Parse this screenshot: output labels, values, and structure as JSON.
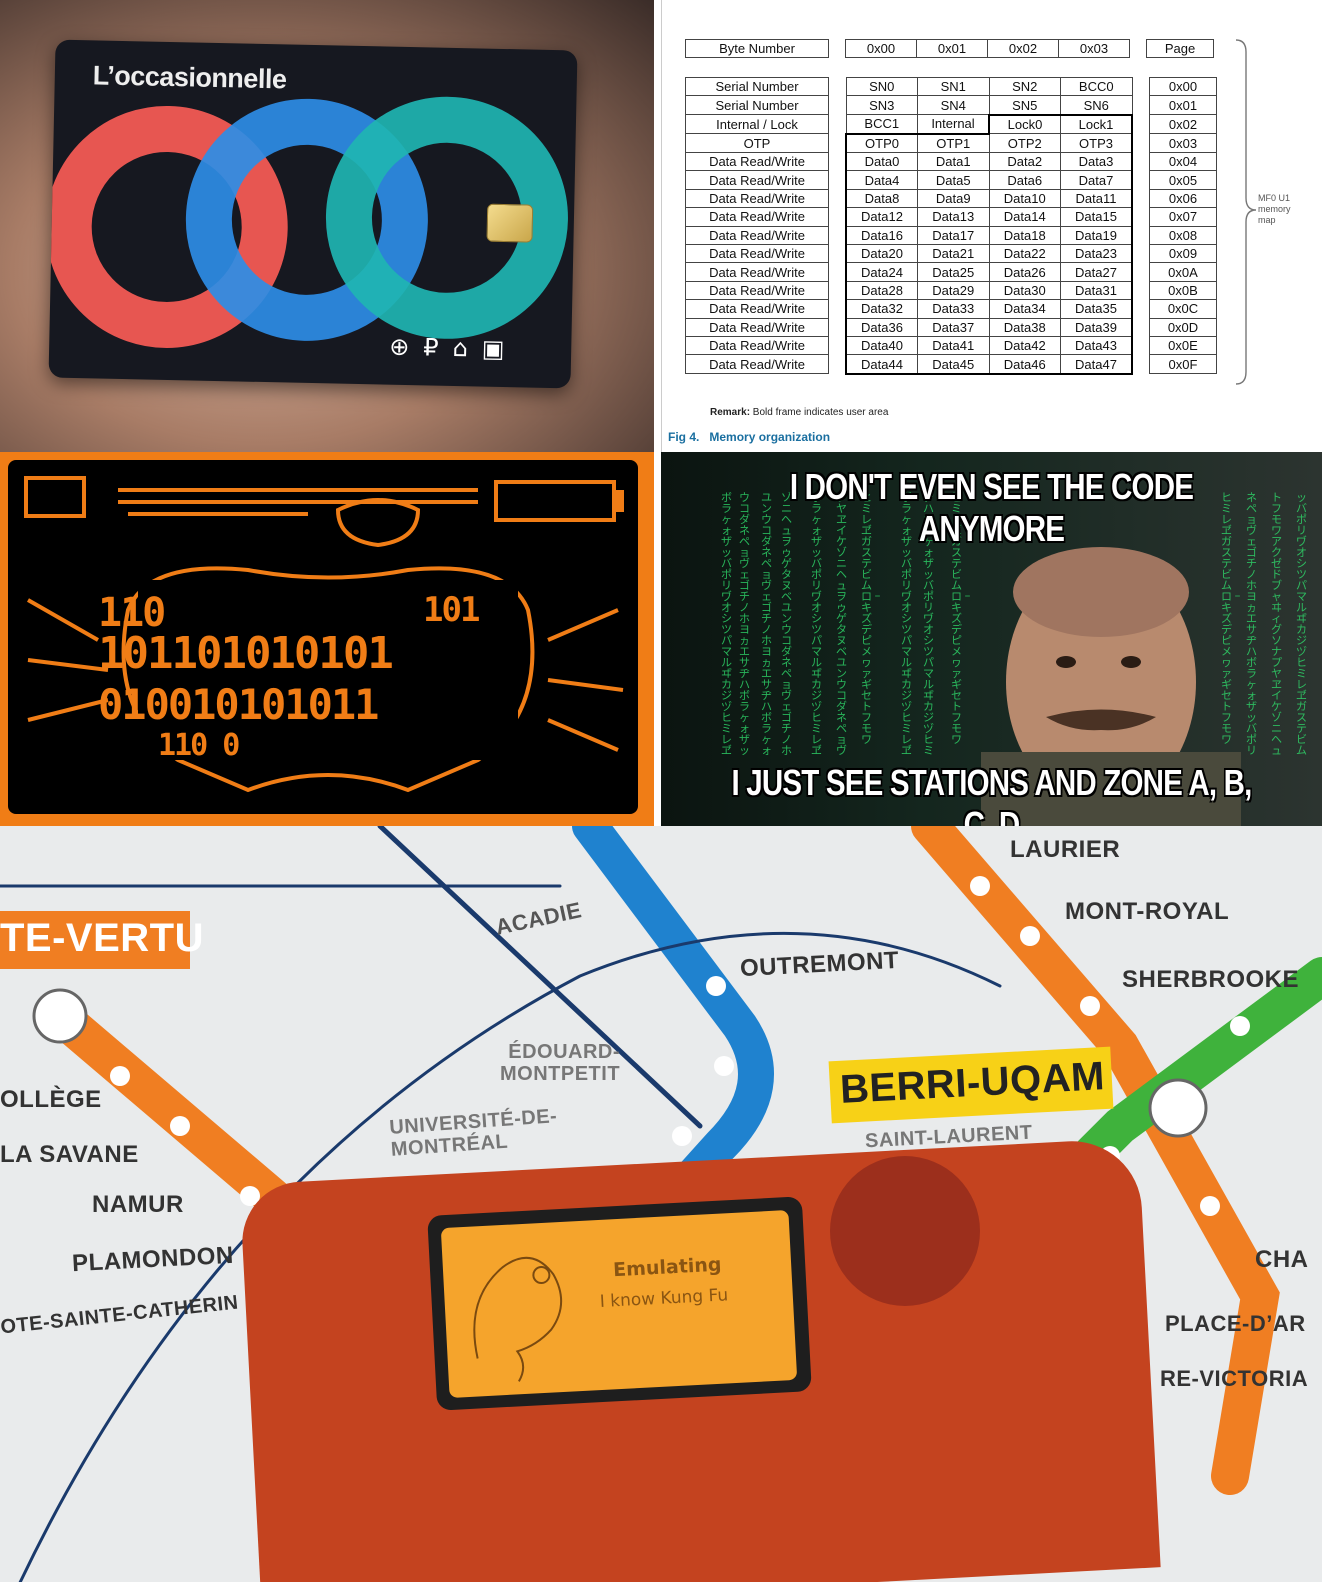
{
  "card": {
    "title": "L’occasionnelle",
    "icons": [
      "metro-icon",
      "train-icon",
      "rem-icon",
      "bus-icon"
    ],
    "ring_colors": [
      "#f25a54",
      "#2e8de6",
      "#1fb5b2"
    ]
  },
  "memory": {
    "header": [
      "Byte Number",
      "0x00",
      "0x01",
      "0x02",
      "0x03",
      "Page"
    ],
    "rows": [
      [
        "Serial Number",
        "SN0",
        "SN1",
        "SN2",
        "BCC0",
        "0x00"
      ],
      [
        "Serial Number",
        "SN3",
        "SN4",
        "SN5",
        "SN6",
        "0x01"
      ],
      [
        "Internal / Lock",
        "BCC1",
        "Internal",
        "Lock0",
        "Lock1",
        "0x02"
      ],
      [
        "OTP",
        "OTP0",
        "OTP1",
        "OTP2",
        "OTP3",
        "0x03"
      ],
      [
        "Data Read/Write",
        "Data0",
        "Data1",
        "Data2",
        "Data3",
        "0x04"
      ],
      [
        "Data Read/Write",
        "Data4",
        "Data5",
        "Data6",
        "Data7",
        "0x05"
      ],
      [
        "Data Read/Write",
        "Data8",
        "Data9",
        "Data10",
        "Data11",
        "0x06"
      ],
      [
        "Data Read/Write",
        "Data12",
        "Data13",
        "Data14",
        "Data15",
        "0x07"
      ],
      [
        "Data Read/Write",
        "Data16",
        "Data17",
        "Data18",
        "Data19",
        "0x08"
      ],
      [
        "Data Read/Write",
        "Data20",
        "Data21",
        "Data22",
        "Data23",
        "0x09"
      ],
      [
        "Data Read/Write",
        "Data24",
        "Data25",
        "Data26",
        "Data27",
        "0x0A"
      ],
      [
        "Data Read/Write",
        "Data28",
        "Data29",
        "Data30",
        "Data31",
        "0x0B"
      ],
      [
        "Data Read/Write",
        "Data32",
        "Data33",
        "Data34",
        "Data35",
        "0x0C"
      ],
      [
        "Data Read/Write",
        "Data36",
        "Data37",
        "Data38",
        "Data39",
        "0x0D"
      ],
      [
        "Data Read/Write",
        "Data40",
        "Data41",
        "Data42",
        "Data43",
        "0x0E"
      ],
      [
        "Data Read/Write",
        "Data44",
        "Data45",
        "Data46",
        "Data47",
        "0x0F"
      ]
    ],
    "brace_label": "MF0 U1\nmemory\nmap",
    "remark_bold": "Remark:",
    "remark_text": " Bold frame indicates user area",
    "fig_num": "Fig 4.",
    "fig_title": "Memory organization"
  },
  "pixel": {
    "lines": [
      "110",
      "101101010101",
      "010010101011",
      "110  0"
    ],
    "right_text": "101"
  },
  "meme": {
    "top": "I DON'T EVEN SEE THE CODE ANYMORE",
    "bottom": "I JUST SEE STATIONS AND ZONE A, B, C, D"
  },
  "map": {
    "stations": {
      "cote_vertu": "TE-VERTU",
      "acadie": "ACADIE",
      "outremont": "OUTREMONT",
      "laurier": "LAURIER",
      "mont_royal": "MONT-ROYAL",
      "sherbrooke": "SHERBROOKE",
      "edouard": "ÉDOUARD-\nMONTPETIT",
      "udem": "UNIVERSITÉ-DE-\nMONTRÉAL",
      "berri": "BERRI-UQAM",
      "saint_laurent": "SAINT-LAURENT",
      "college": "OLLÈGE",
      "savane": "LA SAVANE",
      "namur": "NAMUR",
      "plamondon": "PLAMONDON",
      "cote_sainte_catherine": "OTE-SAINTE-CATHERIN",
      "champ": "CHA",
      "place_darmes": "PLACE-D’AR",
      "victoria": "RE-VICTORIA"
    },
    "device": {
      "status": "Emulating",
      "file": "I know Kung Fu"
    }
  }
}
